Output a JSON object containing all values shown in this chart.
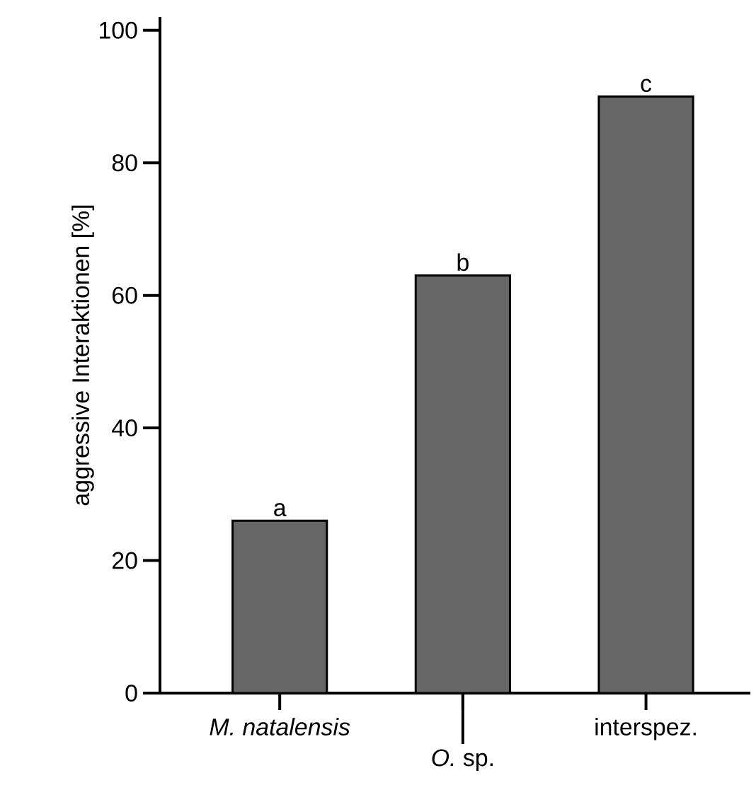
{
  "chart_data": {
    "type": "bar",
    "ylabel": "aggressive Interaktionen [%]",
    "categories": [
      "*M. natalensis*",
      "*O.* sp.",
      "interspez."
    ],
    "values": [
      26,
      63,
      90
    ],
    "color": "#666666",
    "ylim": [
      0,
      102
    ],
    "yticks": [
      0,
      20,
      40,
      60,
      80,
      100
    ],
    "grid": false,
    "annotations": [
      {
        "text": "a",
        "x": "*M. natalensis*",
        "y": 26
      },
      {
        "text": "b",
        "x": "*O.* sp.",
        "y": 63
      },
      {
        "text": "c",
        "x": "interspez.",
        "y": 90
      }
    ]
  }
}
